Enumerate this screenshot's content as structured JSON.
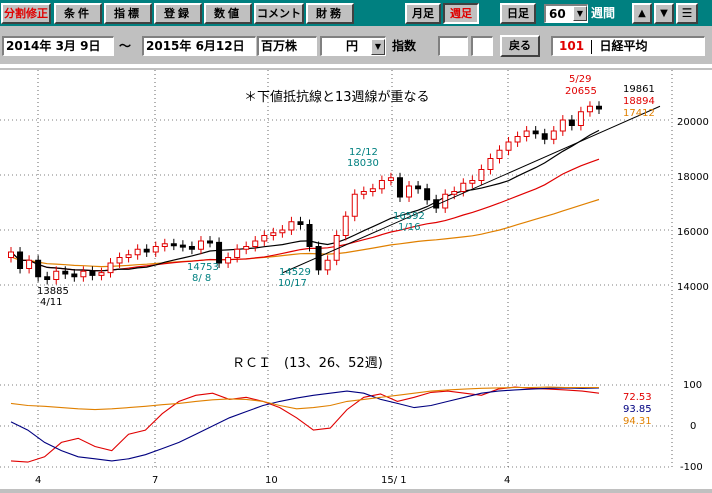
{
  "toolbar": {
    "split_fix": "分割修正",
    "conditions": "条件",
    "indicators": "指標",
    "register": "登録",
    "values": "数値",
    "comment": "コメント",
    "finance": "財務",
    "monthly": "月足",
    "weekly": "週足",
    "daily": "日足",
    "period_count": "60",
    "period_unit": "週間",
    "up_arrow": "▲",
    "down_arrow": "▼",
    "menu": "☰"
  },
  "range_bar": {
    "start_date": "2014年 3月 9日",
    "tilde": "～",
    "end_date": "2015年 6月12日",
    "unit_label": "百万株",
    "currency": "円",
    "index_label": "指数",
    "back_button": "戻る",
    "code": "101",
    "name": "日経平均"
  },
  "chart": {
    "annotation": "＊下値抵抗線と13週線が重なる",
    "rci_title": "ＲＣＩ　(13、26、52週)",
    "price_ticks": [
      "20000",
      "18000",
      "16000",
      "14000"
    ],
    "rci_ticks": [
      "100",
      "0",
      "-100"
    ],
    "x_ticks": [
      "4",
      "7",
      "10",
      "15/ 1",
      "4"
    ],
    "right_values": {
      "top": "19861",
      "ma1": "18894",
      "ma2": "17412"
    },
    "rci_values": {
      "red": "72.53",
      "blue": "93.85",
      "orange": "94.31"
    },
    "labels": [
      {
        "text": "13885",
        "sub": "4/11",
        "color": "#000000"
      },
      {
        "text": "14753",
        "sub": "8/ 8",
        "color": "#008080"
      },
      {
        "text": "14529",
        "sub": "10/17",
        "color": "#008080"
      },
      {
        "text": "12/12",
        "sub": "18030",
        "color": "#008080"
      },
      {
        "text": "16592",
        "sub": "1/16",
        "color": "#008080"
      },
      {
        "text": "5/29",
        "sub": "20655",
        "color": "#e00000"
      }
    ],
    "colors": {
      "up": "#e00000",
      "down": "#000000",
      "ma13": "#000000",
      "ma26": "#e00000",
      "ma52": "#e08000",
      "rci13": "#e00000",
      "rci26": "#000080",
      "rci52": "#e08000"
    }
  }
}
